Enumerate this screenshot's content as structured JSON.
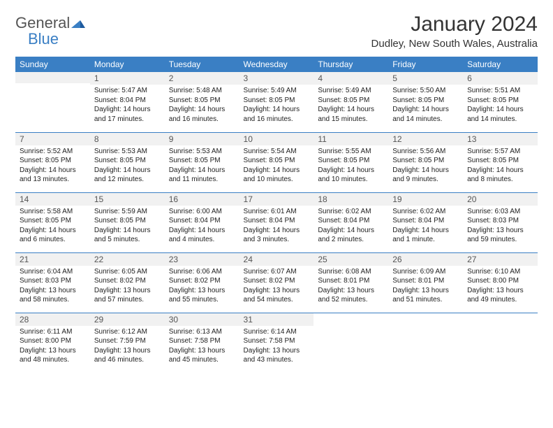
{
  "brand": {
    "name_gray": "General",
    "name_blue": "Blue"
  },
  "title": "January 2024",
  "location": "Dudley, New South Wales, Australia",
  "colors": {
    "header_bg": "#3a7fc4",
    "header_fg": "#ffffff",
    "rule": "#3a7fc4",
    "daynum_bg": "#f1f1f1",
    "text": "#222222"
  },
  "weekdays": [
    "Sunday",
    "Monday",
    "Tuesday",
    "Wednesday",
    "Thursday",
    "Friday",
    "Saturday"
  ],
  "weeks": [
    [
      null,
      {
        "n": "1",
        "sr": "5:47 AM",
        "ss": "8:04 PM",
        "dl": "14 hours and 17 minutes."
      },
      {
        "n": "2",
        "sr": "5:48 AM",
        "ss": "8:05 PM",
        "dl": "14 hours and 16 minutes."
      },
      {
        "n": "3",
        "sr": "5:49 AM",
        "ss": "8:05 PM",
        "dl": "14 hours and 16 minutes."
      },
      {
        "n": "4",
        "sr": "5:49 AM",
        "ss": "8:05 PM",
        "dl": "14 hours and 15 minutes."
      },
      {
        "n": "5",
        "sr": "5:50 AM",
        "ss": "8:05 PM",
        "dl": "14 hours and 14 minutes."
      },
      {
        "n": "6",
        "sr": "5:51 AM",
        "ss": "8:05 PM",
        "dl": "14 hours and 14 minutes."
      }
    ],
    [
      {
        "n": "7",
        "sr": "5:52 AM",
        "ss": "8:05 PM",
        "dl": "14 hours and 13 minutes."
      },
      {
        "n": "8",
        "sr": "5:53 AM",
        "ss": "8:05 PM",
        "dl": "14 hours and 12 minutes."
      },
      {
        "n": "9",
        "sr": "5:53 AM",
        "ss": "8:05 PM",
        "dl": "14 hours and 11 minutes."
      },
      {
        "n": "10",
        "sr": "5:54 AM",
        "ss": "8:05 PM",
        "dl": "14 hours and 10 minutes."
      },
      {
        "n": "11",
        "sr": "5:55 AM",
        "ss": "8:05 PM",
        "dl": "14 hours and 10 minutes."
      },
      {
        "n": "12",
        "sr": "5:56 AM",
        "ss": "8:05 PM",
        "dl": "14 hours and 9 minutes."
      },
      {
        "n": "13",
        "sr": "5:57 AM",
        "ss": "8:05 PM",
        "dl": "14 hours and 8 minutes."
      }
    ],
    [
      {
        "n": "14",
        "sr": "5:58 AM",
        "ss": "8:05 PM",
        "dl": "14 hours and 6 minutes."
      },
      {
        "n": "15",
        "sr": "5:59 AM",
        "ss": "8:05 PM",
        "dl": "14 hours and 5 minutes."
      },
      {
        "n": "16",
        "sr": "6:00 AM",
        "ss": "8:04 PM",
        "dl": "14 hours and 4 minutes."
      },
      {
        "n": "17",
        "sr": "6:01 AM",
        "ss": "8:04 PM",
        "dl": "14 hours and 3 minutes."
      },
      {
        "n": "18",
        "sr": "6:02 AM",
        "ss": "8:04 PM",
        "dl": "14 hours and 2 minutes."
      },
      {
        "n": "19",
        "sr": "6:02 AM",
        "ss": "8:04 PM",
        "dl": "14 hours and 1 minute."
      },
      {
        "n": "20",
        "sr": "6:03 AM",
        "ss": "8:03 PM",
        "dl": "13 hours and 59 minutes."
      }
    ],
    [
      {
        "n": "21",
        "sr": "6:04 AM",
        "ss": "8:03 PM",
        "dl": "13 hours and 58 minutes."
      },
      {
        "n": "22",
        "sr": "6:05 AM",
        "ss": "8:02 PM",
        "dl": "13 hours and 57 minutes."
      },
      {
        "n": "23",
        "sr": "6:06 AM",
        "ss": "8:02 PM",
        "dl": "13 hours and 55 minutes."
      },
      {
        "n": "24",
        "sr": "6:07 AM",
        "ss": "8:02 PM",
        "dl": "13 hours and 54 minutes."
      },
      {
        "n": "25",
        "sr": "6:08 AM",
        "ss": "8:01 PM",
        "dl": "13 hours and 52 minutes."
      },
      {
        "n": "26",
        "sr": "6:09 AM",
        "ss": "8:01 PM",
        "dl": "13 hours and 51 minutes."
      },
      {
        "n": "27",
        "sr": "6:10 AM",
        "ss": "8:00 PM",
        "dl": "13 hours and 49 minutes."
      }
    ],
    [
      {
        "n": "28",
        "sr": "6:11 AM",
        "ss": "8:00 PM",
        "dl": "13 hours and 48 minutes."
      },
      {
        "n": "29",
        "sr": "6:12 AM",
        "ss": "7:59 PM",
        "dl": "13 hours and 46 minutes."
      },
      {
        "n": "30",
        "sr": "6:13 AM",
        "ss": "7:58 PM",
        "dl": "13 hours and 45 minutes."
      },
      {
        "n": "31",
        "sr": "6:14 AM",
        "ss": "7:58 PM",
        "dl": "13 hours and 43 minutes."
      },
      null,
      null,
      null
    ]
  ],
  "labels": {
    "sunrise": "Sunrise:",
    "sunset": "Sunset:",
    "daylight": "Daylight:"
  }
}
